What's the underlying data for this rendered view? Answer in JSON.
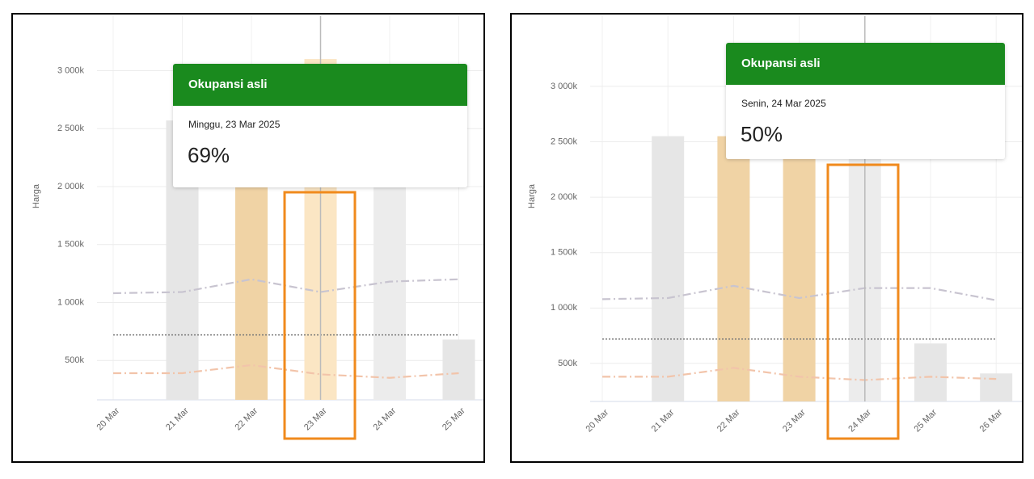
{
  "chart_data": [
    {
      "type": "bar",
      "y_label": "Harga",
      "categories": [
        "20 Mar",
        "21 Mar",
        "22 Mar",
        "23 Mar",
        "24 Mar",
        "25 Mar"
      ],
      "values": [
        null,
        2570000,
        2570000,
        3100000,
        2300000,
        680000
      ],
      "colors": [
        "#e6e6e6",
        "#e6e6e6",
        "#f0d3a5",
        "#fbe6c4",
        "#ececec",
        "#e6e6e6"
      ],
      "lines": [
        {
          "color": "#c8c4d0",
          "style": "dashdot",
          "values": [
            1080000,
            1090000,
            1200000,
            1090000,
            1180000,
            1200000
          ]
        },
        {
          "color": "#777777",
          "style": "dotted",
          "values": [
            720000,
            720000,
            720000,
            720000,
            720000,
            720000
          ]
        },
        {
          "color": "#f2c4aa",
          "style": "dashdot",
          "values": [
            390000,
            390000,
            460000,
            380000,
            350000,
            390000
          ]
        }
      ],
      "ylim": [
        160000,
        3470000
      ],
      "yticks": [
        {
          "value": 500000,
          "label": "500k"
        },
        {
          "value": 1000000,
          "label": "1 000k"
        },
        {
          "value": 1500000,
          "label": "1 500k"
        },
        {
          "value": 2000000,
          "label": "2 000k"
        },
        {
          "value": 2500000,
          "label": "2 500k"
        },
        {
          "value": 3000000,
          "label": "3 000k"
        }
      ],
      "grid": true,
      "highlight_index": 3,
      "tooltip": {
        "title": "Okupansi asli",
        "date": "Minggu, 23 Mar 2025",
        "value": "69%"
      }
    },
    {
      "type": "bar",
      "y_label": "Harga",
      "categories": [
        "20 Mar",
        "21 Mar",
        "22 Mar",
        "23 Mar",
        "24 Mar",
        "25 Mar",
        "26 Mar"
      ],
      "values": [
        null,
        2550000,
        2550000,
        3020000,
        2350000,
        680000,
        410000
      ],
      "colors": [
        "#e6e6e6",
        "#e6e6e6",
        "#f0d3a5",
        "#f0d3a5",
        "#ececec",
        "#e6e6e6",
        "#e6e6e6"
      ],
      "lines": [
        {
          "color": "#c8c4d0",
          "style": "dashdot",
          "values": [
            1080000,
            1090000,
            1200000,
            1090000,
            1180000,
            1180000,
            1070000
          ]
        },
        {
          "color": "#777777",
          "style": "dotted",
          "values": [
            720000,
            720000,
            720000,
            720000,
            720000,
            720000,
            720000
          ]
        },
        {
          "color": "#f2c4aa",
          "style": "dashdot",
          "values": [
            380000,
            380000,
            460000,
            380000,
            350000,
            380000,
            360000
          ]
        }
      ],
      "ylim": [
        157000,
        3633000
      ],
      "yticks": [
        {
          "value": 500000,
          "label": "500k"
        },
        {
          "value": 1000000,
          "label": "1 000k"
        },
        {
          "value": 1500000,
          "label": "1 500k"
        },
        {
          "value": 2000000,
          "label": "2 000k"
        },
        {
          "value": 2500000,
          "label": "2 500k"
        },
        {
          "value": 3000000,
          "label": "3 000k"
        }
      ],
      "grid": true,
      "highlight_index": 4,
      "tooltip": {
        "title": "Okupansi asli",
        "date": "Senin, 24 Mar 2025",
        "value": "50%"
      }
    }
  ]
}
